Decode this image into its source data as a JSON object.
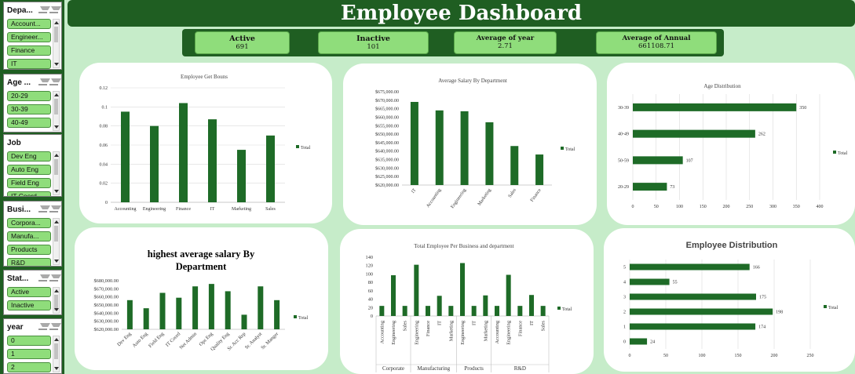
{
  "title": "Employee Dashboard",
  "kpis": [
    {
      "label": "Active",
      "value": "691"
    },
    {
      "label": "Inactive",
      "value": "101"
    },
    {
      "label": "Average of year",
      "value": "2.71"
    },
    {
      "label": "Average of Annual",
      "value": "661108.71"
    }
  ],
  "slicers": [
    {
      "title": "Depa...",
      "items": [
        "Account...",
        "Engineer...",
        "Finance",
        "IT"
      ]
    },
    {
      "title": "Age ...",
      "items": [
        "20-29",
        "30-39",
        "40-49"
      ]
    },
    {
      "title": "Job",
      "items": [
        "Dev Eng",
        "Auto Eng",
        "Field Eng",
        "IT Coord..."
      ]
    },
    {
      "title": "Busi...",
      "items": [
        "Corpora...",
        "Manufa...",
        "Products",
        "R&D"
      ]
    },
    {
      "title": "Stat...",
      "items": [
        "Active",
        "Inactive"
      ]
    },
    {
      "title": "year",
      "items": [
        "0",
        "1",
        "2"
      ]
    }
  ],
  "colors": {
    "bar": "#1e6b27",
    "banner": "#1f5e22",
    "slicer_item": "#8fdd7b",
    "background": "#c6ecc9"
  },
  "chart_data": [
    {
      "type": "bar",
      "title": "Employee Get Bouns",
      "categories": [
        "Accounting",
        "Engineering",
        "Finance",
        "IT",
        "Marketing",
        "Sales"
      ],
      "series": [
        {
          "name": "Total",
          "values": [
            0.095,
            0.08,
            0.104,
            0.087,
            0.055,
            0.07
          ]
        }
      ],
      "ylim": [
        0,
        0.12
      ],
      "yticks": [
        "0",
        "0.02",
        "0.04",
        "0.06",
        "0.08",
        "0.1",
        "0.12"
      ],
      "legend": "right",
      "grid": true
    },
    {
      "type": "bar",
      "title": "Average Salary By Department",
      "categories": [
        "IT",
        "Accounting",
        "Engineering",
        "Marketing",
        "Sales",
        "Finance"
      ],
      "series": [
        {
          "name": "Total",
          "values": [
            669000,
            664000,
            663500,
            657000,
            643000,
            638000
          ]
        }
      ],
      "ylim": [
        620000,
        675000
      ],
      "yticks": [
        "$620,000.00",
        "$625,000.00",
        "$630,000.00",
        "$635,000.00",
        "$640,000.00",
        "$645,000.00",
        "$650,000.00",
        "$655,000.00",
        "$660,000.00",
        "$665,000.00",
        "$670,000.00",
        "$675,000.00"
      ],
      "legend": "right",
      "grid": false
    },
    {
      "type": "bar",
      "orientation": "horizontal",
      "title": "Age Distribution",
      "categories": [
        "20-29",
        "50-59",
        "40-49",
        "30-39"
      ],
      "series": [
        {
          "name": "Total",
          "values": [
            73,
            107,
            262,
            350
          ]
        }
      ],
      "data_labels": [
        "73",
        "107",
        "262",
        "350"
      ],
      "xlim": [
        0,
        400
      ],
      "xticks": [
        "0",
        "50",
        "100",
        "150",
        "200",
        "250",
        "300",
        "350",
        "400"
      ],
      "legend": "right",
      "grid": true
    },
    {
      "type": "bar",
      "title": "highest average  salary By Department",
      "categories": [
        "Dev Eng",
        "Auto Eng",
        "Field Eng",
        "IT Coord",
        "Net Admin",
        "Ops Eng",
        "Quality Eng",
        "Sr. Acc Rep",
        "Sr. Analyst",
        "Sr. Manger"
      ],
      "series": [
        {
          "name": "Total",
          "values": [
            656000,
            646000,
            665000,
            659000,
            673000,
            676000,
            667000,
            638000,
            673000,
            656000
          ]
        }
      ],
      "ylim": [
        620000,
        680000
      ],
      "yticks": [
        "$620,000.00",
        "$630,000.00",
        "$640,000.00",
        "$650,000.00",
        "$660,000.00",
        "$670,000.00",
        "$680,000.00"
      ],
      "legend": "right",
      "grid": false
    },
    {
      "type": "bar",
      "title": "Total Employee Per Business and department",
      "categories": [
        "Accounting",
        "Engineering",
        "Sales",
        "Engineering",
        "Finance",
        "IT",
        "Marketing",
        "Engineering",
        "IT",
        "Marketing",
        "Accounting",
        "Engineering",
        "Finance",
        "IT",
        "Sales"
      ],
      "groups": [
        {
          "name": "Corporate",
          "count": 3
        },
        {
          "name": "Manufacturing",
          "count": 4
        },
        {
          "name": "Products",
          "count": 3
        },
        {
          "name": "R&D",
          "count": 5
        }
      ],
      "series": [
        {
          "name": "Total",
          "values": [
            24,
            97,
            24,
            122,
            24,
            48,
            24,
            126,
            24,
            49,
            24,
            98,
            24,
            50,
            24
          ]
        }
      ],
      "ylim": [
        0,
        140
      ],
      "yticks": [
        "0",
        "20",
        "40",
        "60",
        "80",
        "100",
        "120",
        "140"
      ],
      "legend": "right",
      "grid": false
    },
    {
      "type": "bar",
      "orientation": "horizontal",
      "title": "Employee Distribution",
      "categories": [
        "0",
        "1",
        "2",
        "3",
        "4",
        "5"
      ],
      "series": [
        {
          "name": "Total",
          "values": [
            24,
            174,
            198,
            175,
            55,
            166
          ]
        }
      ],
      "data_labels": [
        "24",
        "174",
        "198",
        "175",
        "55",
        "166"
      ],
      "xlim": [
        0,
        250
      ],
      "xticks": [
        "0",
        "50",
        "100",
        "150",
        "200",
        "250"
      ],
      "legend": "right",
      "grid": true
    }
  ]
}
